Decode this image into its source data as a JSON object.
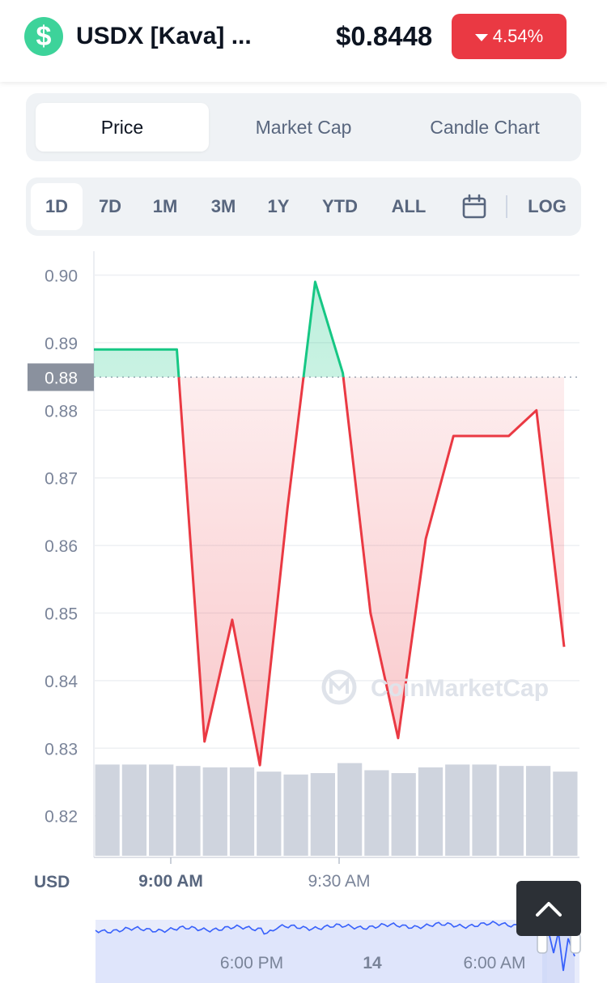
{
  "header": {
    "coin_icon": "dollar-sign-icon",
    "coin_symbol": "$",
    "coin_name": "USDX [Kava] ...",
    "price": "$0.8448",
    "change": "4.54%",
    "change_color": "#ea3943"
  },
  "tabs": [
    {
      "label": "Price",
      "active": true
    },
    {
      "label": "Market Cap",
      "active": false
    },
    {
      "label": "Candle Chart",
      "active": false
    }
  ],
  "ranges": [
    "1D",
    "7D",
    "1M",
    "3M",
    "1Y",
    "YTD",
    "ALL"
  ],
  "active_range": "1D",
  "log_label": "LOG",
  "calendar_icon": "calendar-icon",
  "scroll_top_icon": "chevron-up-icon",
  "chart_data": {
    "type": "line",
    "currency_label": "USD",
    "y_ticks": [
      "0.90",
      "0.89",
      "0.88",
      "0.88",
      "0.87",
      "0.86",
      "0.85",
      "0.84",
      "0.83",
      "0.82"
    ],
    "y_tick_values": [
      0.9,
      0.89,
      0.88,
      0.87,
      0.86,
      0.85,
      0.84,
      0.83,
      0.82
    ],
    "reference_value": 0.8849,
    "reference_label": "0.88",
    "x_tick_labels": [
      "9:00 AM",
      "9:30 AM"
    ],
    "x_tick_bold": [
      true,
      false
    ],
    "series": [
      {
        "values": [
          0.889,
          0.889,
          0.889,
          0.889,
          0.831,
          0.849,
          0.8275,
          0.8655,
          0.899,
          0.8855,
          0.85,
          0.8315,
          0.861,
          0.8762,
          0.8762,
          0.8762,
          0.88,
          0.845
        ]
      }
    ],
    "up_color": "#16c784",
    "down_color": "#ea3943",
    "volume_values": [
      3.2,
      3.2,
      3.2,
      3.15,
      3.1,
      3.1,
      2.95,
      2.85,
      2.9,
      3.25,
      3.0,
      2.9,
      3.1,
      3.2,
      3.2,
      3.15,
      3.15,
      2.95
    ],
    "watermark": "CoinMarketCap",
    "navigator": {
      "x_labels": [
        "6:00 PM",
        "14",
        "6:00 AM"
      ],
      "x_label_bold": [
        false,
        true,
        false
      ]
    }
  }
}
